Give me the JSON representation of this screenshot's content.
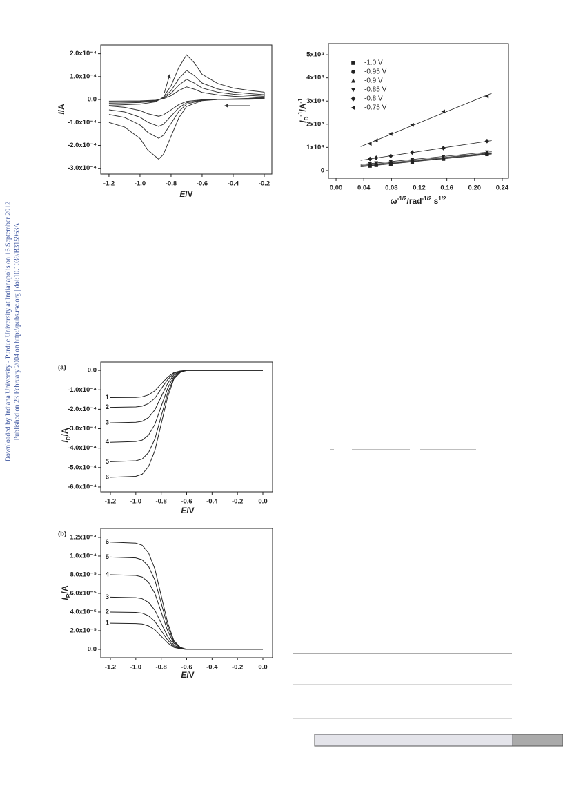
{
  "side_note": [
    "Downloaded by Indiana University - Purdue University at Indianapolis on 16 September 2012",
    "Published on 23 February 2004 on http://pubs.rsc.org | doi:10.1039/B315963A"
  ],
  "chart_data": [
    {
      "type": "line",
      "color": "#333333",
      "x": [
        -1.2,
        -1.0,
        -0.9,
        -0.85,
        -0.8,
        -0.75,
        -0.7,
        -0.65,
        -0.6,
        -0.5,
        -0.4,
        -0.3,
        -0.2,
        -0.2,
        -0.3,
        -0.5,
        -0.6,
        -0.7,
        -0.75,
        -0.8,
        -0.85,
        -0.88,
        -0.95,
        -1.0,
        -1.1,
        -1.2
      ],
      "xlabel": [
        "E",
        "/V"
      ],
      "ylabel": [
        "I",
        "/A"
      ],
      "xlim": [
        -1.253,
        -0.151
      ],
      "ylim": [
        -0.000325,
        0.000238
      ],
      "xticks": [
        -1.2,
        {
          "value": -1.0,
          "label": "-1.0"
        },
        -0.8,
        -0.6,
        -0.4,
        -0.2
      ],
      "yticks": [
        {
          "value": -0.0003,
          "label": "-3.0x10⁻⁴"
        },
        {
          "value": -0.0002,
          "label": "-2.0x10⁻⁴"
        },
        {
          "value": -0.0001,
          "label": "-1.0x10⁻⁴"
        },
        {
          "value": 0,
          "label": "0.0"
        },
        {
          "value": 0.0001,
          "label": "1.0x10⁻⁴"
        },
        {
          "value": 0.0002,
          "label": "2.0x10⁻⁴"
        }
      ],
      "series": [
        {
          "values": [
            -2.5e-05,
            -2e-05,
            -1e-05,
            1e-05,
            6e-05,
            0.00014,
            0.000195,
            0.00016,
            0.00011,
            7e-05,
            5e-05,
            4e-05,
            3.2e-05,
            1e-05,
            5e-06,
            0,
            -5e-06,
            -3e-05,
            -8e-05,
            -0.00016,
            -0.00024,
            -0.00026,
            -0.00022,
            -0.00017,
            -0.00012,
            -0.0001
          ]
        },
        {
          "values": [
            -1.6e-05,
            -1.3e-05,
            -7e-06,
            7e-06,
            3.9e-05,
            9.1e-05,
            0.000127,
            0.000104,
            7.2e-05,
            4.6e-05,
            3.3e-05,
            2.6e-05,
            2.1e-05,
            7e-06,
            3e-06,
            0,
            -3e-06,
            -2e-05,
            -5.2e-05,
            -0.000104,
            -0.000156,
            -0.000169,
            -0.000143,
            -0.000111,
            -7.8e-05,
            -6.5e-05
          ]
        },
        {
          "values": [
            -1.1e-05,
            -9e-06,
            -5e-06,
            5e-06,
            2.7e-05,
            6.3e-05,
            8.8e-05,
            7.2e-05,
            5e-05,
            3.2e-05,
            2.3e-05,
            1.8e-05,
            1.4e-05,
            5e-06,
            2e-06,
            0,
            -2e-06,
            -1.4e-05,
            -3.6e-05,
            -7.2e-05,
            -0.000108,
            -0.000117,
            -9.9e-05,
            -7.7e-05,
            -5.4e-05,
            -4.5e-05
          ]
        },
        {
          "values": [
            -7e-06,
            -6e-06,
            -3e-06,
            3e-06,
            1.7e-05,
            3.9e-05,
            5.5e-05,
            4.5e-05,
            3.1e-05,
            2e-05,
            1.4e-05,
            1.1e-05,
            9e-06,
            3e-06,
            1e-06,
            0,
            -1e-06,
            -8e-06,
            -2.2e-05,
            -4.5e-05,
            -6.7e-05,
            -7.3e-05,
            -6.2e-05,
            -4.8e-05,
            -3.4e-05,
            -2.8e-05
          ]
        }
      ]
    },
    {
      "type": "scatter",
      "color": "#222222",
      "fit_lines": true,
      "x": [
        0.049,
        0.058,
        0.079,
        0.11,
        0.155,
        0.218
      ],
      "xlabel": [
        "ω",
        "-1/2",
        "/rad",
        "-1/2",
        " s",
        "1/2"
      ],
      "ylabel": [
        "I",
        "D",
        "-1",
        "/A",
        "-1"
      ],
      "xlim": [
        -0.011,
        0.249
      ],
      "ylim": [
        -3300,
        54800
      ],
      "xticks": [
        {
          "value": 0,
          "label": "0.00"
        },
        0.04,
        0.08,
        0.12,
        0.16,
        {
          "value": 0.2,
          "label": "0.20"
        },
        0.24
      ],
      "yticks": [
        0,
        {
          "value": 10000,
          "label": "1x10⁴"
        },
        {
          "value": 20000,
          "label": "2x10⁴"
        },
        {
          "value": 30000,
          "label": "3x10⁴"
        },
        {
          "value": 40000,
          "label": "4x10⁴"
        },
        {
          "value": 50000,
          "label": "5x10⁴"
        }
      ],
      "series": [
        {
          "name": "-1.0 V",
          "values": [
            2000,
            2300,
            2800,
            3700,
            5000,
            7000
          ]
        },
        {
          "name": "-0.95 V",
          "values": [
            2200,
            2600,
            3100,
            4000,
            5300,
            7200
          ]
        },
        {
          "name": "-0.9 V",
          "values": [
            2500,
            2900,
            3500,
            4300,
            5600,
            7500
          ]
        },
        {
          "name": "-0.85 V",
          "values": [
            3000,
            3300,
            3900,
            4700,
            6000,
            8000
          ]
        },
        {
          "name": "-0.8 V",
          "values": [
            5000,
            5500,
            6300,
            7800,
            9700,
            12700
          ]
        },
        {
          "name": "-0.75 V",
          "values": [
            11500,
            13000,
            15800,
            19700,
            25500,
            32000
          ]
        }
      ]
    },
    {
      "type": "line",
      "color": "#222222",
      "panel": "(a)",
      "x": [
        -1.2,
        -1.0,
        -0.95,
        -0.9,
        -0.85,
        -0.8,
        -0.75,
        -0.7,
        -0.65,
        -0.6,
        -0.4,
        -0.2,
        0.0
      ],
      "xlabel": [
        "E",
        "/V"
      ],
      "ylabel": [
        "I",
        "D",
        "/A"
      ],
      "xlim": [
        -1.276,
        0.076
      ],
      "ylim": [
        -0.000625,
        4.3e-05
      ],
      "xticks": [
        -1.2,
        {
          "value": -1.0,
          "label": "-1.0"
        },
        -0.8,
        -0.6,
        -0.4,
        -0.2,
        {
          "value": 0,
          "label": "0.0"
        }
      ],
      "yticks": [
        {
          "value": -0.0006,
          "label": "-6.0x10⁻⁴"
        },
        {
          "value": -0.0005,
          "label": "-5.0x10⁻⁴"
        },
        {
          "value": -0.0004,
          "label": "-4.0x10⁻⁴"
        },
        {
          "value": -0.0003,
          "label": "-3.0x10⁻⁴"
        },
        {
          "value": -0.0002,
          "label": "-2.0x10⁻⁴"
        },
        {
          "value": -0.0001,
          "label": "-1.0x10⁻⁴"
        },
        {
          "value": 0,
          "label": "0.0"
        }
      ],
      "series": [
        {
          "name": "1",
          "values": [
            -0.00014,
            -0.000139,
            -0.000136,
            -0.000126,
            -0.000105,
            -7e-05,
            -3.5e-05,
            -1.1e-05,
            -3e-06,
            0,
            0,
            0,
            0
          ]
        },
        {
          "name": "2",
          "values": [
            -0.00019,
            -0.000188,
            -0.000184,
            -0.000171,
            -0.000143,
            -9.5e-05,
            -4.8e-05,
            -1.5e-05,
            -4e-06,
            0,
            0,
            0,
            0
          ]
        },
        {
          "name": "3",
          "values": [
            -0.00027,
            -0.000267,
            -0.000262,
            -0.000243,
            -0.000203,
            -0.000135,
            -6.8e-05,
            -2.2e-05,
            -5e-06,
            0,
            0,
            0,
            0
          ]
        },
        {
          "name": "4",
          "values": [
            -0.00037,
            -0.000366,
            -0.000359,
            -0.000333,
            -0.000278,
            -0.000185,
            -9.3e-05,
            -3e-05,
            -7e-06,
            0,
            0,
            0,
            0
          ]
        },
        {
          "name": "5",
          "values": [
            -0.00047,
            -0.000465,
            -0.000456,
            -0.000423,
            -0.000353,
            -0.000235,
            -0.000118,
            -3.8e-05,
            -9e-06,
            0,
            0,
            0,
            0
          ]
        },
        {
          "name": "6",
          "values": [
            -0.00055,
            -0.000545,
            -0.000534,
            -0.000495,
            -0.000413,
            -0.000275,
            -0.000138,
            -4.4e-05,
            -1.1e-05,
            0,
            0,
            0,
            0
          ]
        }
      ]
    },
    {
      "type": "line",
      "color": "#222222",
      "panel": "(b)",
      "x": [
        -1.2,
        -1.0,
        -0.95,
        -0.9,
        -0.85,
        -0.8,
        -0.75,
        -0.7,
        -0.65,
        -0.6,
        -0.4,
        -0.2,
        0.0
      ],
      "xlabel": [
        "E",
        "/V"
      ],
      "ylabel": [
        "I",
        "R",
        "/A"
      ],
      "xlim": [
        -1.276,
        0.076
      ],
      "ylim": [
        -8.9e-06,
        0.0001296
      ],
      "xticks": [
        -1.2,
        {
          "value": -1.0,
          "label": "-1.0"
        },
        -0.8,
        -0.6,
        -0.4,
        -0.2,
        {
          "value": 0,
          "label": "0.0"
        }
      ],
      "yticks": [
        {
          "value": 0,
          "label": "0.0"
        },
        {
          "value": 2e-05,
          "label": "2.0x10⁻⁵"
        },
        {
          "value": 4e-05,
          "label": "4.0x10⁻⁵"
        },
        {
          "value": 6e-05,
          "label": "6.0x10⁻⁵"
        },
        {
          "value": 8e-05,
          "label": "8.0x10⁻⁵"
        },
        {
          "value": 0.0001,
          "label": "1.0x10⁻⁴"
        },
        {
          "value": 0.00012,
          "label": "1.2x10⁻⁴"
        }
      ],
      "series": [
        {
          "name": "1",
          "values": [
            2.8e-05,
            2.77e-05,
            2.72e-05,
            2.52e-05,
            2.1e-05,
            1.4e-05,
            7e-06,
            2.2e-06,
            6e-07,
            0,
            0,
            0,
            0
          ]
        },
        {
          "name": "2",
          "values": [
            4e-05,
            3.96e-05,
            3.88e-05,
            3.6e-05,
            3e-05,
            2e-05,
            1e-05,
            3.2e-06,
            8e-07,
            0,
            0,
            0,
            0
          ]
        },
        {
          "name": "3",
          "values": [
            5.6e-05,
            5.54e-05,
            5.43e-05,
            5.04e-05,
            4.2e-05,
            2.8e-05,
            1.4e-05,
            4.5e-06,
            1.1e-06,
            0,
            0,
            0,
            0
          ]
        },
        {
          "name": "4",
          "values": [
            8e-05,
            7.92e-05,
            7.76e-05,
            7.2e-05,
            6e-05,
            4e-05,
            2e-05,
            6.4e-06,
            1.6e-06,
            0,
            0,
            0,
            0
          ]
        },
        {
          "name": "5",
          "values": [
            9.9e-05,
            9.8e-05,
            9.6e-05,
            8.91e-05,
            7.43e-05,
            4.95e-05,
            2.48e-05,
            7.9e-06,
            2e-06,
            0,
            0,
            0,
            0
          ]
        },
        {
          "name": "6",
          "values": [
            0.000115,
            0.0001139,
            0.0001116,
            0.0001035,
            8.63e-05,
            5.75e-05,
            2.88e-05,
            9.2e-06,
            2.3e-06,
            0,
            0,
            0,
            0
          ]
        }
      ]
    }
  ]
}
